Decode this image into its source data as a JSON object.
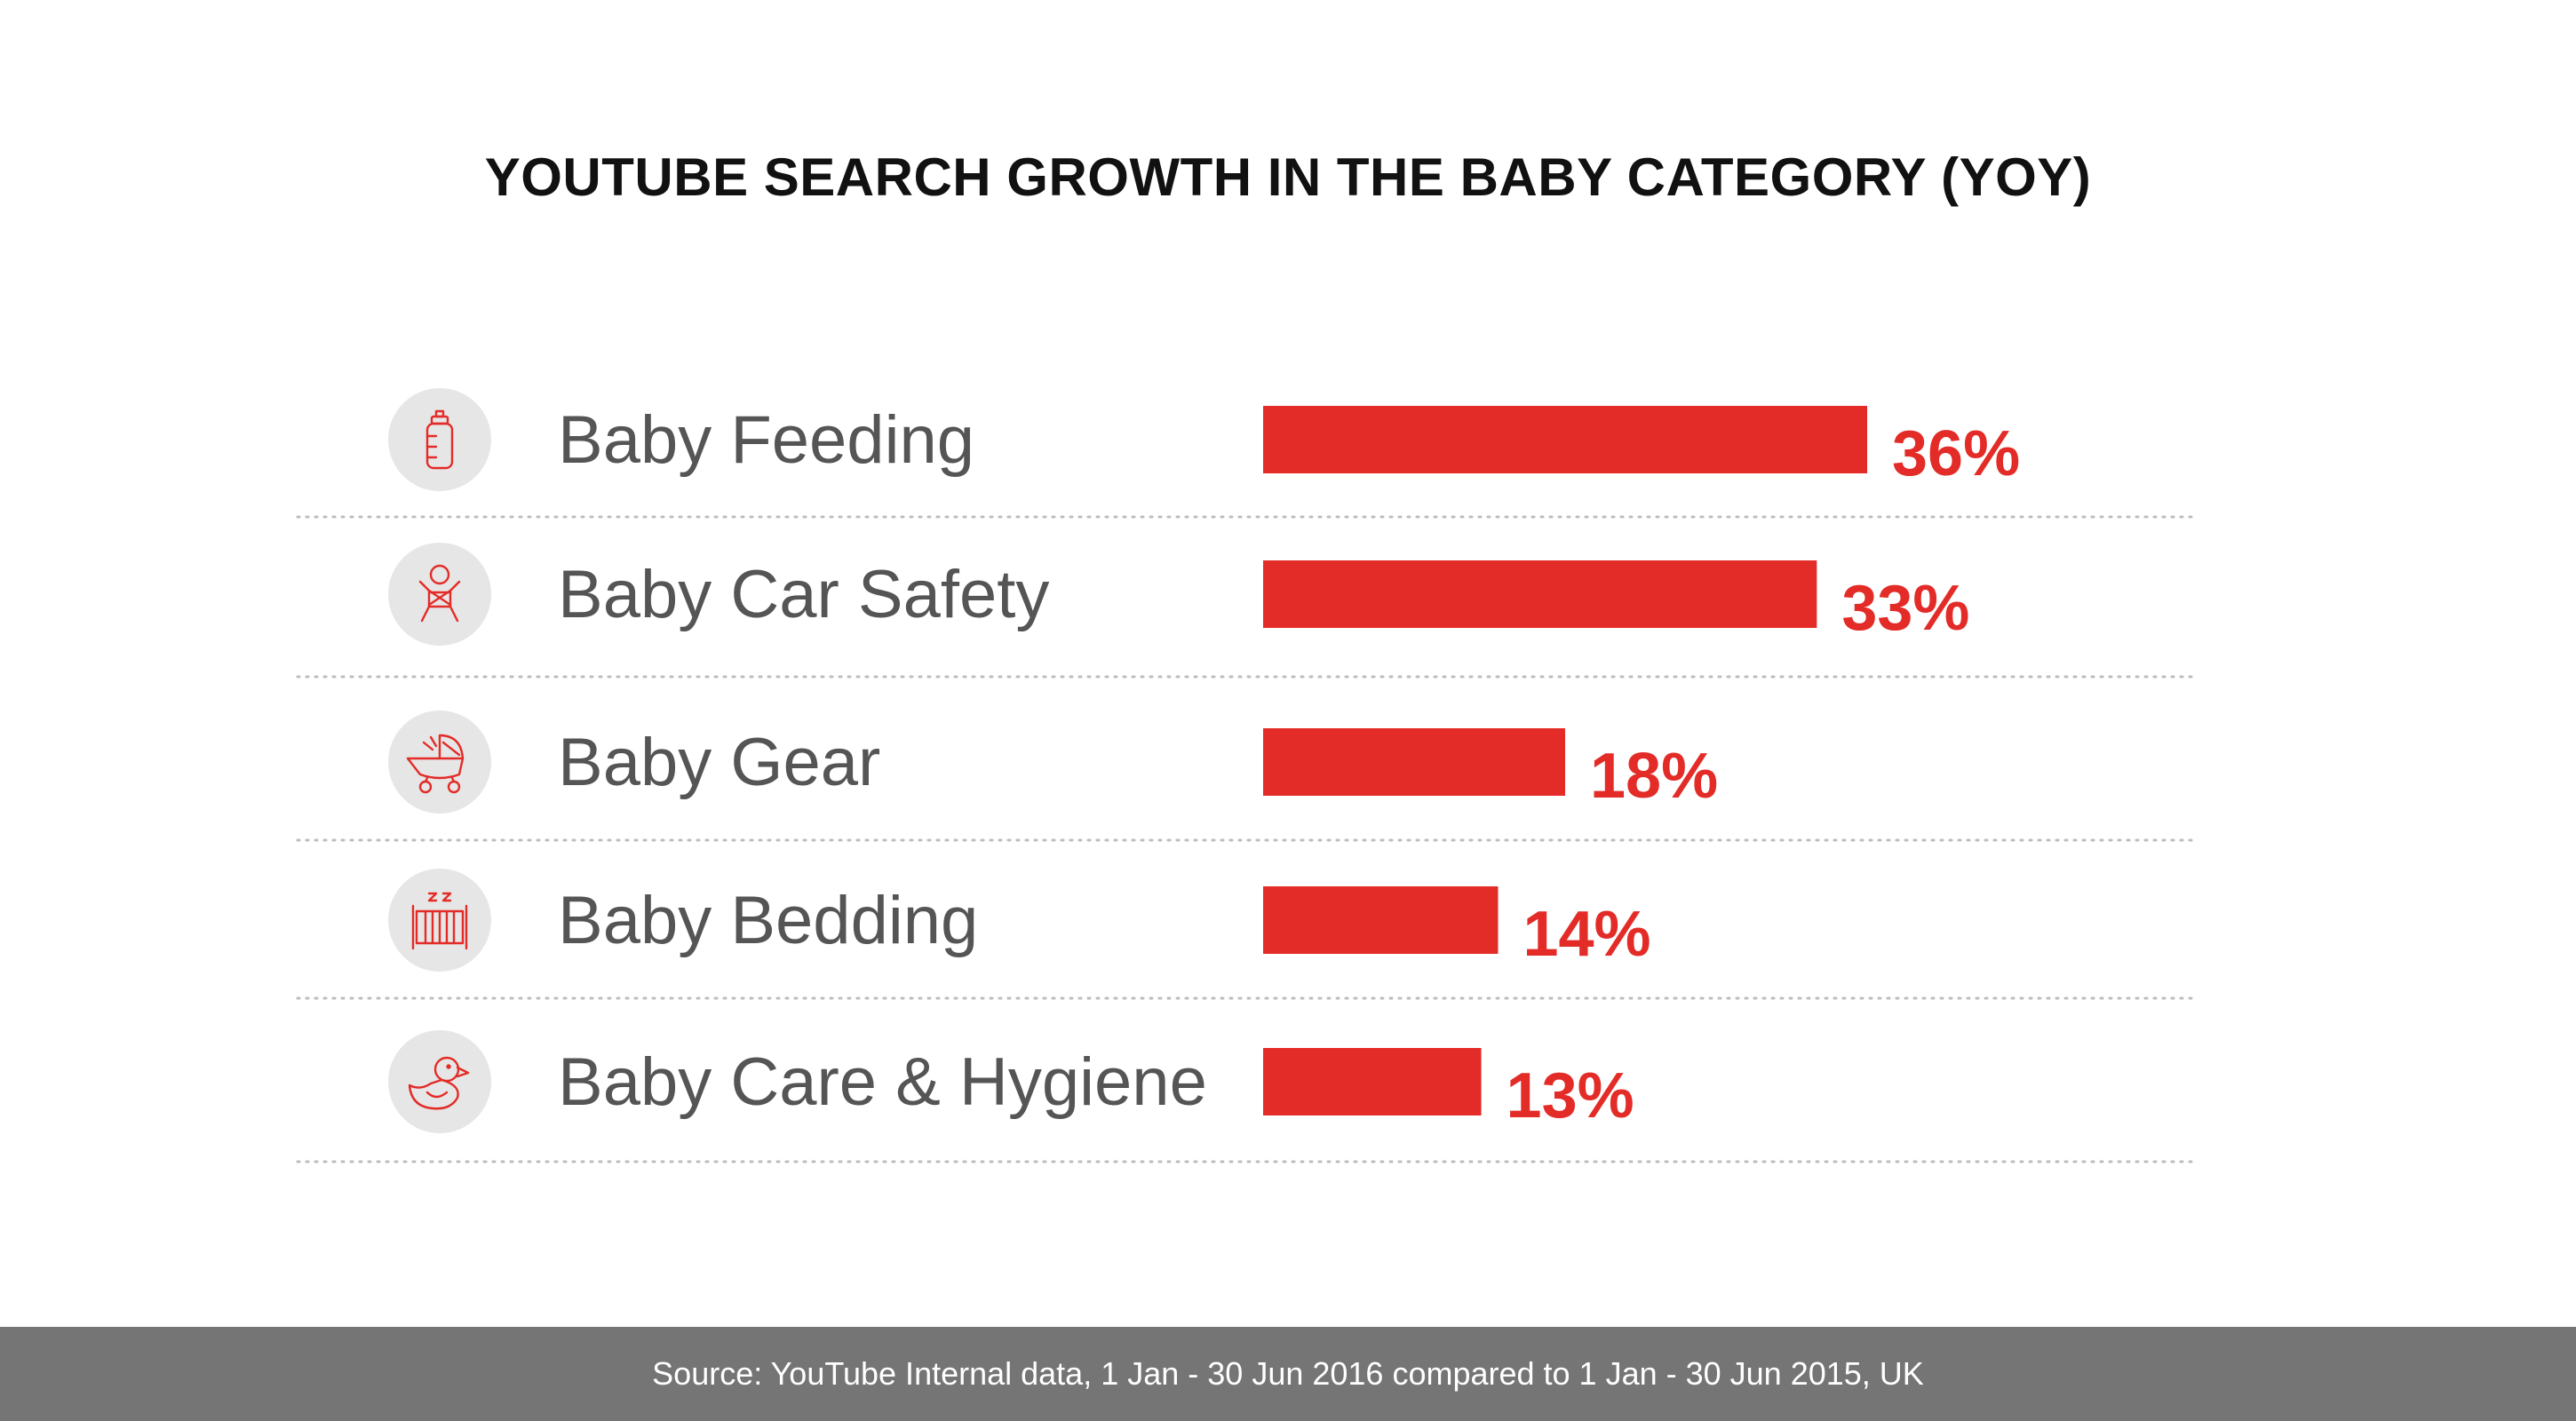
{
  "title": "YOUTUBE SEARCH GROWTH IN THE BABY CATEGORY (YOY)",
  "source": "Source: YouTube Internal data, 1 Jan - 30 Jun 2016 compared to 1 Jan - 30 Jun 2015, UK",
  "colors": {
    "bar": "#e32b27",
    "icon_circle": "#e6e6e6",
    "icon_stroke": "#e32b27",
    "divider": "#bdbdbd",
    "footer": "#757575"
  },
  "chart_data": {
    "type": "bar",
    "orientation": "horizontal",
    "title": "YOUTUBE SEARCH GROWTH IN THE BABY CATEGORY (YOY)",
    "categories": [
      "Baby Feeding",
      "Baby Car Safety",
      "Baby Gear",
      "Baby Bedding",
      "Baby Care & Hygiene"
    ],
    "values": [
      36,
      33,
      18,
      14,
      13
    ],
    "value_labels": [
      "36%",
      "33%",
      "18%",
      "14%",
      "13%"
    ],
    "icons": [
      "baby-bottle-icon",
      "car-seat-baby-icon",
      "stroller-icon",
      "crib-icon",
      "rubber-duck-icon"
    ],
    "unit": "%",
    "grid": false,
    "legend": "none"
  }
}
